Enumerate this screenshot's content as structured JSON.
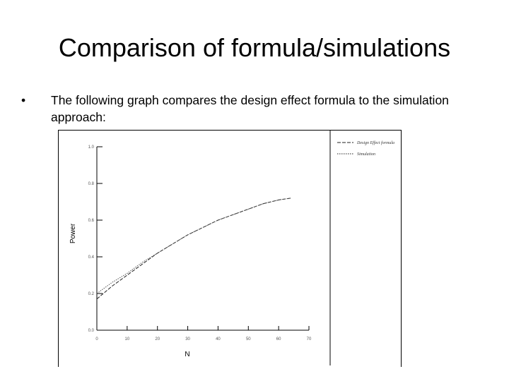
{
  "slide": {
    "title": "Comparison of formula/simulations",
    "bullet_marker": "•",
    "bullet_text": "The following graph compares the design effect formula to the simulation approach:"
  },
  "chart_data": {
    "type": "line",
    "xlabel": "N",
    "ylabel": "Power",
    "xlim": [
      0,
      70
    ],
    "ylim": [
      0,
      1.0
    ],
    "x_ticks": [
      "0",
      "10",
      "20",
      "30",
      "40",
      "50",
      "60",
      "70"
    ],
    "y_ticks": [
      "0.0",
      "0.2",
      "0.4",
      "0.6",
      "0.8",
      "1.0"
    ],
    "grid": false,
    "legend_position": "top-right",
    "series": [
      {
        "name": "Design Effect formula",
        "style": "dashed",
        "x": [
          0,
          5,
          10,
          15,
          20,
          25,
          30,
          35,
          40,
          45,
          50,
          55,
          60,
          64
        ],
        "values": [
          0.17,
          0.24,
          0.3,
          0.36,
          0.42,
          0.47,
          0.52,
          0.56,
          0.6,
          0.63,
          0.66,
          0.69,
          0.71,
          0.72
        ]
      },
      {
        "name": "Simulation",
        "style": "dotted",
        "x": [
          0,
          5,
          10,
          15,
          20,
          25,
          30,
          35,
          40,
          45,
          50,
          55,
          60,
          64
        ],
        "values": [
          0.2,
          0.26,
          0.31,
          0.37,
          0.42,
          0.47,
          0.52,
          0.56,
          0.6,
          0.63,
          0.66,
          0.69,
          0.71,
          0.72
        ]
      }
    ]
  }
}
